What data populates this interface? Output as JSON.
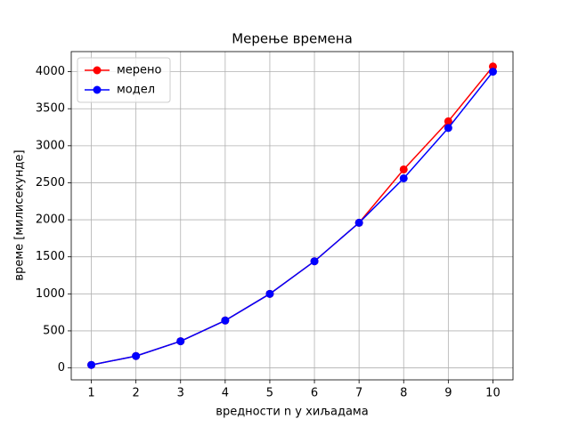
{
  "chart_data": {
    "type": "line",
    "title": "Мерење времена",
    "xlabel": "вредности n у хиљадама",
    "ylabel": "време [милисекунде]",
    "x": [
      1,
      2,
      3,
      4,
      5,
      6,
      7,
      8,
      9,
      10
    ],
    "series": [
      {
        "name": "мерено",
        "color": "#ff0000",
        "values": [
          40,
          160,
          360,
          640,
          1000,
          1440,
          1960,
          2680,
          3330,
          4070
        ]
      },
      {
        "name": "модел",
        "color": "#0000ff",
        "values": [
          40,
          160,
          360,
          640,
          1000,
          1440,
          1960,
          2560,
          3240,
          4000
        ]
      }
    ],
    "xlim": [
      0.55,
      10.45
    ],
    "ylim": [
      -161.5,
      4271.5
    ],
    "xticks": [
      1,
      2,
      3,
      4,
      5,
      6,
      7,
      8,
      9,
      10
    ],
    "yticks": [
      0,
      500,
      1000,
      1500,
      2000,
      2500,
      3000,
      3500,
      4000
    ],
    "grid": true,
    "legend": "upper-left"
  }
}
